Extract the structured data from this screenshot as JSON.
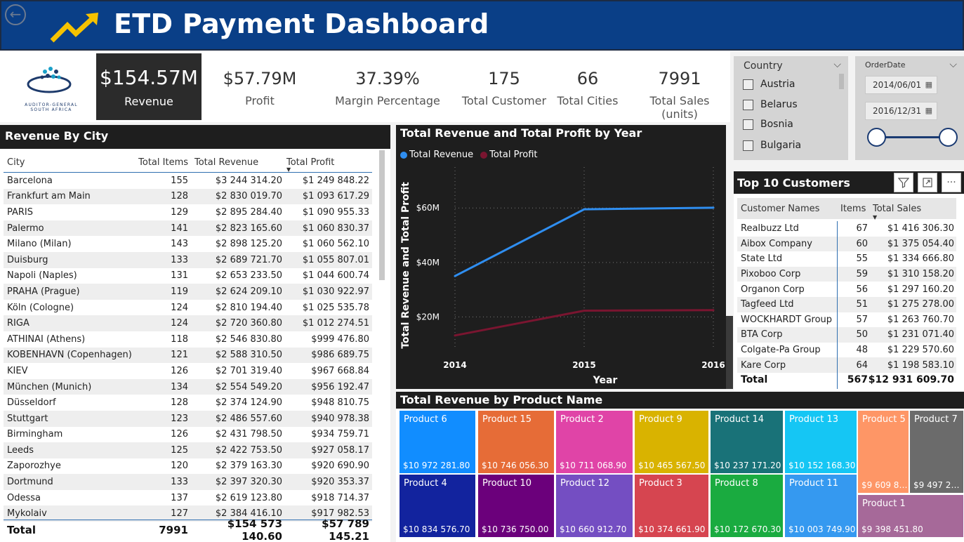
{
  "header": {
    "title": "ETD Payment Dashboard"
  },
  "logo": {
    "line1": "AUDITOR-GENERAL",
    "line2": "SOUTH AFRICA"
  },
  "kpis": {
    "revenue": {
      "value": "$154.57M",
      "label": "Revenue"
    },
    "profit": {
      "value": "$57.79M",
      "label": "Profit"
    },
    "margin": {
      "value": "37.39%",
      "label": "Margin Percentage"
    },
    "customers": {
      "value": "175",
      "label": "Total Customer"
    },
    "cities": {
      "value": "66",
      "label": "Total Cities"
    },
    "sales": {
      "value": "7991",
      "label": "Total Sales (units)"
    }
  },
  "country_slicer": {
    "title": "Country",
    "items": [
      "Austria",
      "Belarus",
      "Bosnia",
      "Bulgaria"
    ]
  },
  "date_slicer": {
    "title": "OrderDate",
    "start": "2014/06/01",
    "end": "2016/12/31"
  },
  "city_table": {
    "title": "Revenue By City",
    "headers": [
      "City",
      "Total Items",
      "Total Revenue",
      "Total Profit"
    ],
    "rows": [
      [
        "Barcelona",
        "155",
        "$3 244 314.20",
        "$1 249 848.22"
      ],
      [
        "Frankfurt am Main",
        "128",
        "$2 830 019.70",
        "$1 093 617.29"
      ],
      [
        "PARIS",
        "129",
        "$2 895 284.40",
        "$1 090 955.33"
      ],
      [
        "Palermo",
        "141",
        "$2 823 165.60",
        "$1 060 830.37"
      ],
      [
        "Milano (Milan)",
        "143",
        "$2 898 125.20",
        "$1 060 562.10"
      ],
      [
        "Duisburg",
        "133",
        "$2 689 721.70",
        "$1 055 807.01"
      ],
      [
        "Napoli (Naples)",
        "131",
        "$2 653 233.50",
        "$1 044 600.74"
      ],
      [
        "PRAHA (Prague)",
        "119",
        "$2 624 209.10",
        "$1 030 922.97"
      ],
      [
        "Köln (Cologne)",
        "124",
        "$2 810 194.40",
        "$1 025 535.78"
      ],
      [
        "RIGA",
        "124",
        "$2 720 360.80",
        "$1 012 274.51"
      ],
      [
        "ATHINAI (Athens)",
        "118",
        "$2 546 830.80",
        "$999 476.80"
      ],
      [
        "KOBENHAVN (Copenhagen)",
        "121",
        "$2 588 310.50",
        "$986 689.75"
      ],
      [
        "KIEV",
        "126",
        "$2 701 319.40",
        "$967 668.84"
      ],
      [
        "München (Munich)",
        "134",
        "$2 554 549.20",
        "$956 192.47"
      ],
      [
        "Düsseldorf",
        "128",
        "$2 374 124.90",
        "$948 810.75"
      ],
      [
        "Stuttgart",
        "123",
        "$2 486 557.60",
        "$940 978.38"
      ],
      [
        "Birmingham",
        "126",
        "$2 431 798.50",
        "$934 759.71"
      ],
      [
        "Leeds",
        "125",
        "$2 422 753.50",
        "$927 058.17"
      ],
      [
        "Zaporozhye",
        "120",
        "$2 379 163.30",
        "$920 690.90"
      ],
      [
        "Dortmund",
        "133",
        "$2 397 320.30",
        "$920 353.37"
      ],
      [
        "Odessa",
        "137",
        "$2 619 123.80",
        "$918 714.37"
      ],
      [
        "Mykolaiv",
        "127",
        "$2 384 416.10",
        "$917 982.53"
      ]
    ],
    "total": [
      "Total",
      "7991",
      "$154 573 140.60",
      "$57 789 145.21"
    ]
  },
  "line_chart": {
    "title": "Total Revenue and Total Profit by Year",
    "legend": [
      "Total Revenue",
      "Total Profit"
    ]
  },
  "chart_data": {
    "type": "line",
    "title": "Total Revenue and Total Profit by Year",
    "x": [
      "2014",
      "2015",
      "2016"
    ],
    "xlabel": "Year",
    "ylabel": "Total Revenue and Total Profit",
    "yticks": [
      "$20M",
      "$40M",
      "$60M"
    ],
    "ytick_values": [
      20,
      40,
      60
    ],
    "ylim": [
      8,
      75
    ],
    "series": [
      {
        "name": "Total Revenue",
        "color": "#2f8ef0",
        "values": [
          35,
          59.5,
          60.1
        ]
      },
      {
        "name": "Total Profit",
        "color": "#7a1530",
        "values": [
          13.2,
          22.3,
          22.5
        ]
      }
    ],
    "grid": true,
    "legend_position": "top-left"
  },
  "customers": {
    "title": "Top 10 Customers",
    "headers": [
      "Customer Names",
      "Items",
      "Total Sales"
    ],
    "rows": [
      [
        "Realbuzz Ltd",
        "67",
        "$1 416 306.30"
      ],
      [
        "Aibox Company",
        "60",
        "$1 375 054.40"
      ],
      [
        "State Ltd",
        "55",
        "$1 334 666.80"
      ],
      [
        "Pixoboo Corp",
        "59",
        "$1 310 158.20"
      ],
      [
        "Organon Corp",
        "56",
        "$1 297 160.20"
      ],
      [
        "Tagfeed Ltd",
        "51",
        "$1 275 278.00"
      ],
      [
        "WOCKHARDT Group",
        "57",
        "$1 263 760.70"
      ],
      [
        "BTA Corp",
        "50",
        "$1 231 071.40"
      ],
      [
        "Colgate-Pa Group",
        "48",
        "$1 229 570.60"
      ],
      [
        "Kare Corp",
        "64",
        "$1 198 583.10"
      ]
    ],
    "total": [
      "Total",
      "567",
      "$12 931 609.70"
    ]
  },
  "treemap": {
    "title": "Total Revenue by Product Name",
    "tiles": [
      {
        "name": "Product 6",
        "value": "$10 972 281.80",
        "color": "#118dff"
      },
      {
        "name": "Product 15",
        "value": "$10 746 056.30",
        "color": "#e66c37"
      },
      {
        "name": "Product 2",
        "value": "$10 711 068.90",
        "color": "#e044a7"
      },
      {
        "name": "Product 9",
        "value": "$10 465 567.50",
        "color": "#d9b300"
      },
      {
        "name": "Product 14",
        "value": "$10 237 171.20",
        "color": "#197278"
      },
      {
        "name": "Product 13",
        "value": "$10 152 168.30",
        "color": "#15c6f4"
      },
      {
        "name": "Product 5",
        "value": "$9 609 8…",
        "color": "#fe9666"
      },
      {
        "name": "Product 7",
        "value": "$9 497 2…",
        "color": "#6b6b6b"
      },
      {
        "name": "Product 4",
        "value": "$10 834 576.70",
        "color": "#12239e"
      },
      {
        "name": "Product 10",
        "value": "$10 736 750.00",
        "color": "#6b007b"
      },
      {
        "name": "Product 12",
        "value": "$10 660 912.70",
        "color": "#744ec2"
      },
      {
        "name": "Product 3",
        "value": "$10 374 661.90",
        "color": "#d64550"
      },
      {
        "name": "Product 8",
        "value": "$10 172 670.30",
        "color": "#1aab40"
      },
      {
        "name": "Product 11",
        "value": "$10 003 749.90",
        "color": "#3599f0"
      },
      {
        "name": "Product 1",
        "value": "$9 398 451.80",
        "color": "#a66999"
      }
    ]
  }
}
